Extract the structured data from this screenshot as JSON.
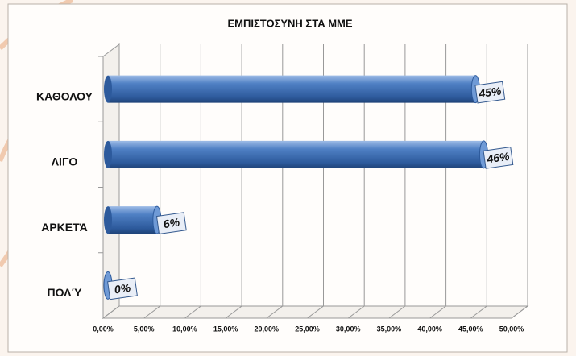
{
  "chart_data": {
    "type": "hbar",
    "title": "ΕΜΠΙΣΤΟΣΥΝΗ ΣΤΑ ΜΜΕ",
    "categories": [
      "ΚΑΘΟΛΟΥ",
      "ΛΙΓΟ",
      "ΑΡΚΕΤΆ",
      "ΠΟΛΎ"
    ],
    "values": [
      45,
      46,
      6,
      0
    ],
    "value_labels": [
      "45%",
      "46%",
      "6%",
      "0%"
    ],
    "color": "#3f6fb5",
    "xlim": [
      0,
      50
    ],
    "xticks": [
      {
        "value": 0,
        "label": "0,00%"
      },
      {
        "value": 5,
        "label": "5,00%"
      },
      {
        "value": 10,
        "label": "10,00%"
      },
      {
        "value": 15,
        "label": "15,00%"
      },
      {
        "value": 20,
        "label": "20,00%"
      },
      {
        "value": 25,
        "label": "25,00%"
      },
      {
        "value": 30,
        "label": "30,00%"
      },
      {
        "value": 35,
        "label": "35,00%"
      },
      {
        "value": 40,
        "label": "40,00%"
      },
      {
        "value": 45,
        "label": "45,00%"
      },
      {
        "value": 50,
        "label": "50,00%"
      }
    ],
    "grid": true
  }
}
